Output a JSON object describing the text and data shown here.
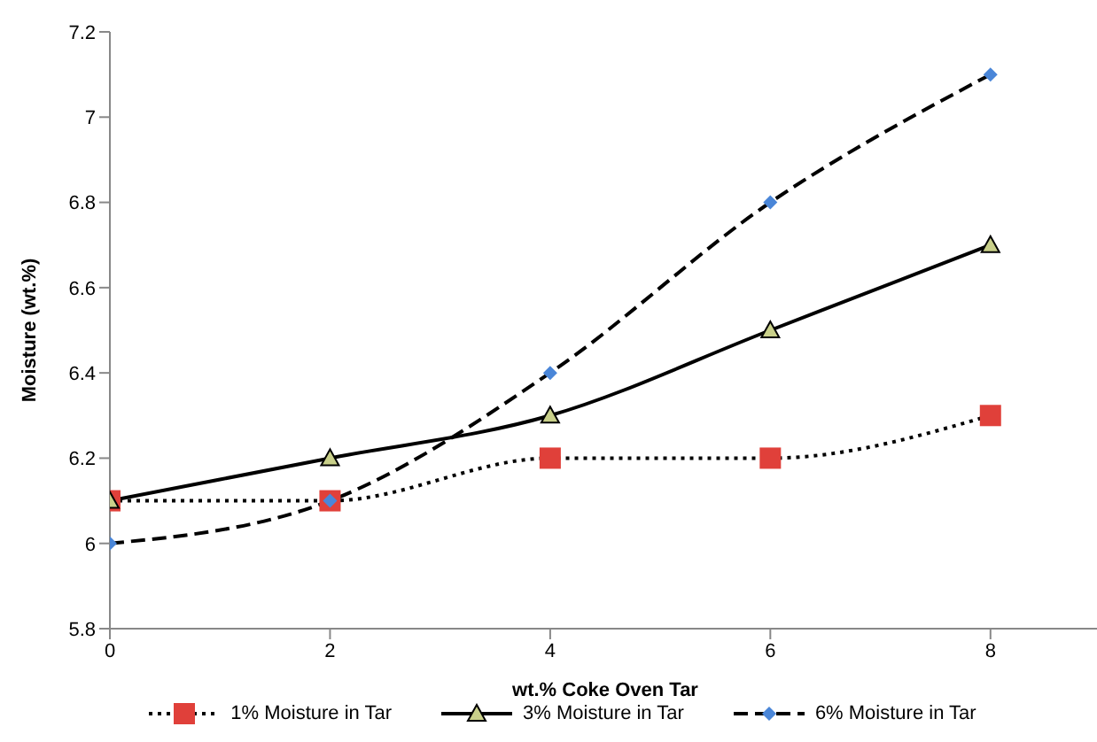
{
  "chart_data": {
    "type": "line",
    "xlabel": "wt.% Coke Oven Tar",
    "ylabel": "Moisture (wt.%)",
    "x": [
      0,
      2,
      4,
      6,
      8
    ],
    "xlim": [
      0,
      9
    ],
    "xticks": [
      0,
      2,
      4,
      6,
      8
    ],
    "ylim": [
      5.8,
      7.2
    ],
    "yticks": [
      5.8,
      6,
      6.2,
      6.4,
      6.6,
      6.8,
      7,
      7.2
    ],
    "grid": false,
    "legend": "bottom",
    "series": [
      {
        "name": "1% Moisture in Tar",
        "color": "#e0403a",
        "values": [
          6.1,
          6.1,
          6.2,
          6.2,
          6.3
        ],
        "marker": "square",
        "line_style": "dotted"
      },
      {
        "name": "3% Moisture in Tar",
        "color": "#c9d08a",
        "values": [
          6.1,
          6.2,
          6.3,
          6.5,
          6.7
        ],
        "marker": "triangle",
        "line_style": "solid"
      },
      {
        "name": "6% Moisture in Tar",
        "color": "#4a86d8",
        "values": [
          6.0,
          6.1,
          6.4,
          6.8,
          7.1
        ],
        "marker": "diamond",
        "line_style": "dashed"
      }
    ]
  }
}
